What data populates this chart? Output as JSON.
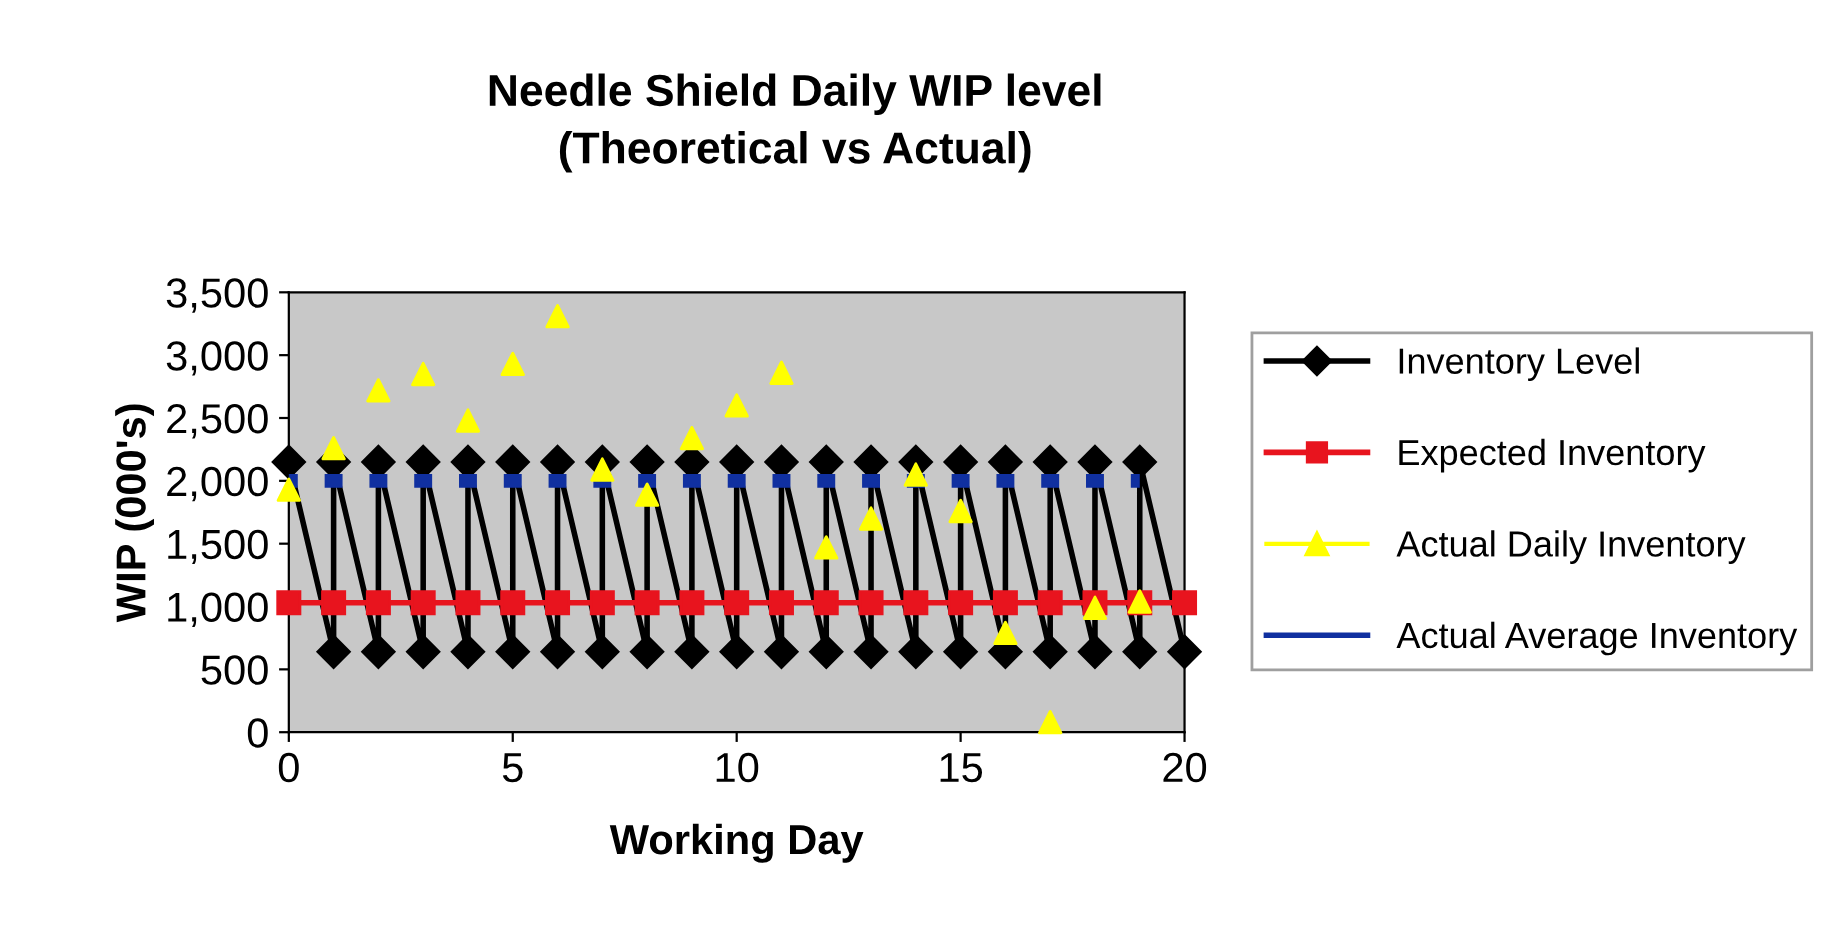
{
  "chart_data": {
    "type": "line",
    "title": "Needle Shield Daily WIP level\n(Theoretical vs Actual)",
    "xlabel": "Working Day",
    "ylabel": "WIP (000's)",
    "xlim": [
      0,
      20
    ],
    "xticks": [
      0,
      5,
      10,
      15,
      20
    ],
    "ylim": [
      0,
      3500
    ],
    "yticks": [
      {
        "value": 0,
        "label": "0"
      },
      {
        "value": 500,
        "label": "500"
      },
      {
        "value": 1000,
        "label": "1,000"
      },
      {
        "value": 1500,
        "label": "1,500"
      },
      {
        "value": 2000,
        "label": "2,000"
      },
      {
        "value": 2500,
        "label": "2,500"
      },
      {
        "value": 3000,
        "label": "3,000"
      },
      {
        "value": 3500,
        "label": "3,500"
      }
    ],
    "grid": false,
    "legend": "right",
    "series": [
      {
        "name": "Inventory Level",
        "type": "line",
        "color": "#000000",
        "marker": "diamond",
        "line_style": "solid",
        "x": [
          0,
          1,
          1,
          2,
          2,
          3,
          3,
          4,
          4,
          5,
          5,
          6,
          6,
          7,
          7,
          8,
          8,
          9,
          9,
          10,
          10,
          11,
          11,
          12,
          12,
          13,
          13,
          14,
          14,
          15,
          15,
          16,
          16,
          17,
          17,
          18,
          18,
          19,
          19,
          20
        ],
        "values": [
          2150,
          640,
          2150,
          640,
          2150,
          640,
          2150,
          640,
          2150,
          640,
          2150,
          640,
          2150,
          640,
          2150,
          640,
          2150,
          640,
          2150,
          640,
          2150,
          640,
          2150,
          640,
          2150,
          640,
          2150,
          640,
          2150,
          640,
          2150,
          640,
          2150,
          640,
          2150,
          640,
          2150,
          640,
          2150,
          640
        ]
      },
      {
        "name": "Expected Inventory",
        "color": "#e8141e",
        "marker": "square",
        "line_style": "solid",
        "x": [
          0,
          1,
          2,
          3,
          4,
          5,
          6,
          7,
          8,
          9,
          10,
          11,
          12,
          13,
          14,
          15,
          16,
          17,
          18,
          19,
          20
        ],
        "values": [
          1030,
          1030,
          1030,
          1030,
          1030,
          1030,
          1030,
          1030,
          1030,
          1030,
          1030,
          1030,
          1030,
          1030,
          1030,
          1030,
          1030,
          1030,
          1030,
          1030,
          1030
        ]
      },
      {
        "name": "Actual Daily Inventory",
        "type": "scatter",
        "color": "#ffff00",
        "marker": "triangle",
        "x": [
          0,
          1,
          2,
          3,
          4,
          5,
          6,
          7,
          8,
          9,
          10,
          11,
          12,
          13,
          14,
          15,
          16,
          17,
          18,
          19
        ],
        "values": [
          1930,
          2260,
          2720,
          2850,
          2480,
          2930,
          3310,
          2090,
          1890,
          2340,
          2600,
          2860,
          1470,
          1700,
          2050,
          1760,
          790,
          80,
          990,
          1040
        ]
      },
      {
        "name": "Actual Average Inventory",
        "color": "#1030a0",
        "marker": "none",
        "line_style": "dashed",
        "x": [
          0,
          1,
          2,
          3,
          4,
          5,
          6,
          7,
          8,
          9,
          10,
          11,
          12,
          13,
          14,
          15,
          16,
          17,
          18,
          19
        ],
        "values": [
          2000,
          2000,
          2000,
          2000,
          2000,
          2000,
          2000,
          2000,
          2000,
          2000,
          2000,
          2000,
          2000,
          2000,
          2000,
          2000,
          2000,
          2000,
          2000,
          2000
        ]
      }
    ]
  }
}
